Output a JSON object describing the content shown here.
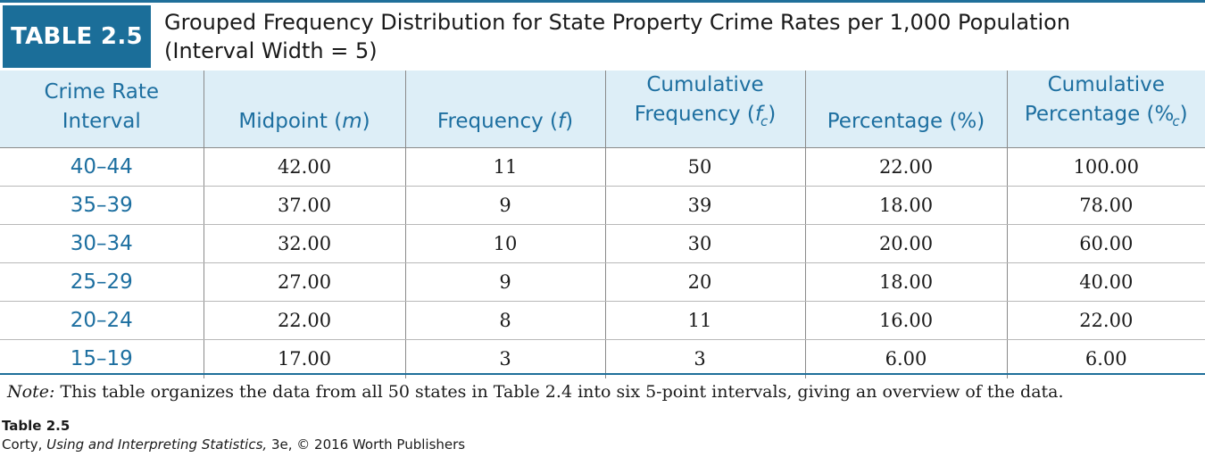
{
  "table": {
    "label": "TABLE 2.5",
    "title_line1": "Grouped Frequency Distribution for State Property Crime Rates per 1,000 Population",
    "title_line2": "(Interval Width = 5)",
    "headers": [
      {
        "line1": "Crime Rate",
        "line2": "Interval"
      },
      {
        "line1": "",
        "line2_pre": "Midpoint (",
        "symbol": "m",
        "line2_post": ")"
      },
      {
        "line1": "",
        "line2_pre": "Frequency (",
        "symbol": "f",
        "line2_post": ")"
      },
      {
        "line1": "Cumulative",
        "line2_pre": "Frequency (",
        "symbol": "f",
        "sub": "c",
        "line2_post": ")"
      },
      {
        "line1": "",
        "line2": "Percentage (%)"
      },
      {
        "line1": "Cumulative",
        "line2_pre": "Percentage (%",
        "sub": "c",
        "line2_post": ")"
      }
    ],
    "rows": [
      {
        "interval": "40–44",
        "midpoint": "42.00",
        "frequency": "11",
        "cum_frequency": "50",
        "percentage": "22.00",
        "cum_percentage": "100.00"
      },
      {
        "interval": "35–39",
        "midpoint": "37.00",
        "frequency": "9",
        "cum_frequency": "39",
        "percentage": "18.00",
        "cum_percentage": "78.00"
      },
      {
        "interval": "30–34",
        "midpoint": "32.00",
        "frequency": "10",
        "cum_frequency": "30",
        "percentage": "20.00",
        "cum_percentage": "60.00"
      },
      {
        "interval": "25–29",
        "midpoint": "27.00",
        "frequency": "9",
        "cum_frequency": "20",
        "percentage": "18.00",
        "cum_percentage": "40.00"
      },
      {
        "interval": "20–24",
        "midpoint": "22.00",
        "frequency": "8",
        "cum_frequency": "11",
        "percentage": "16.00",
        "cum_percentage": "22.00"
      },
      {
        "interval": "15–19",
        "midpoint": "17.00",
        "frequency": "3",
        "cum_frequency": "3",
        "percentage": "6.00",
        "cum_percentage": "6.00"
      }
    ],
    "note_label": "Note:",
    "note_text": " This table organizes the data from all 50 states in Table 2.4 into six 5-point intervals, giving an overview of the data."
  },
  "caption": {
    "id": "Table 2.5",
    "author": "Corty, ",
    "book": "Using and Interpreting Statistics,",
    "rest": " 3e, © 2016 Worth Publishers"
  },
  "colors": {
    "accent": "#1b6e99",
    "header_bg": "#ddeef7",
    "header_text": "#1d6fa0"
  }
}
